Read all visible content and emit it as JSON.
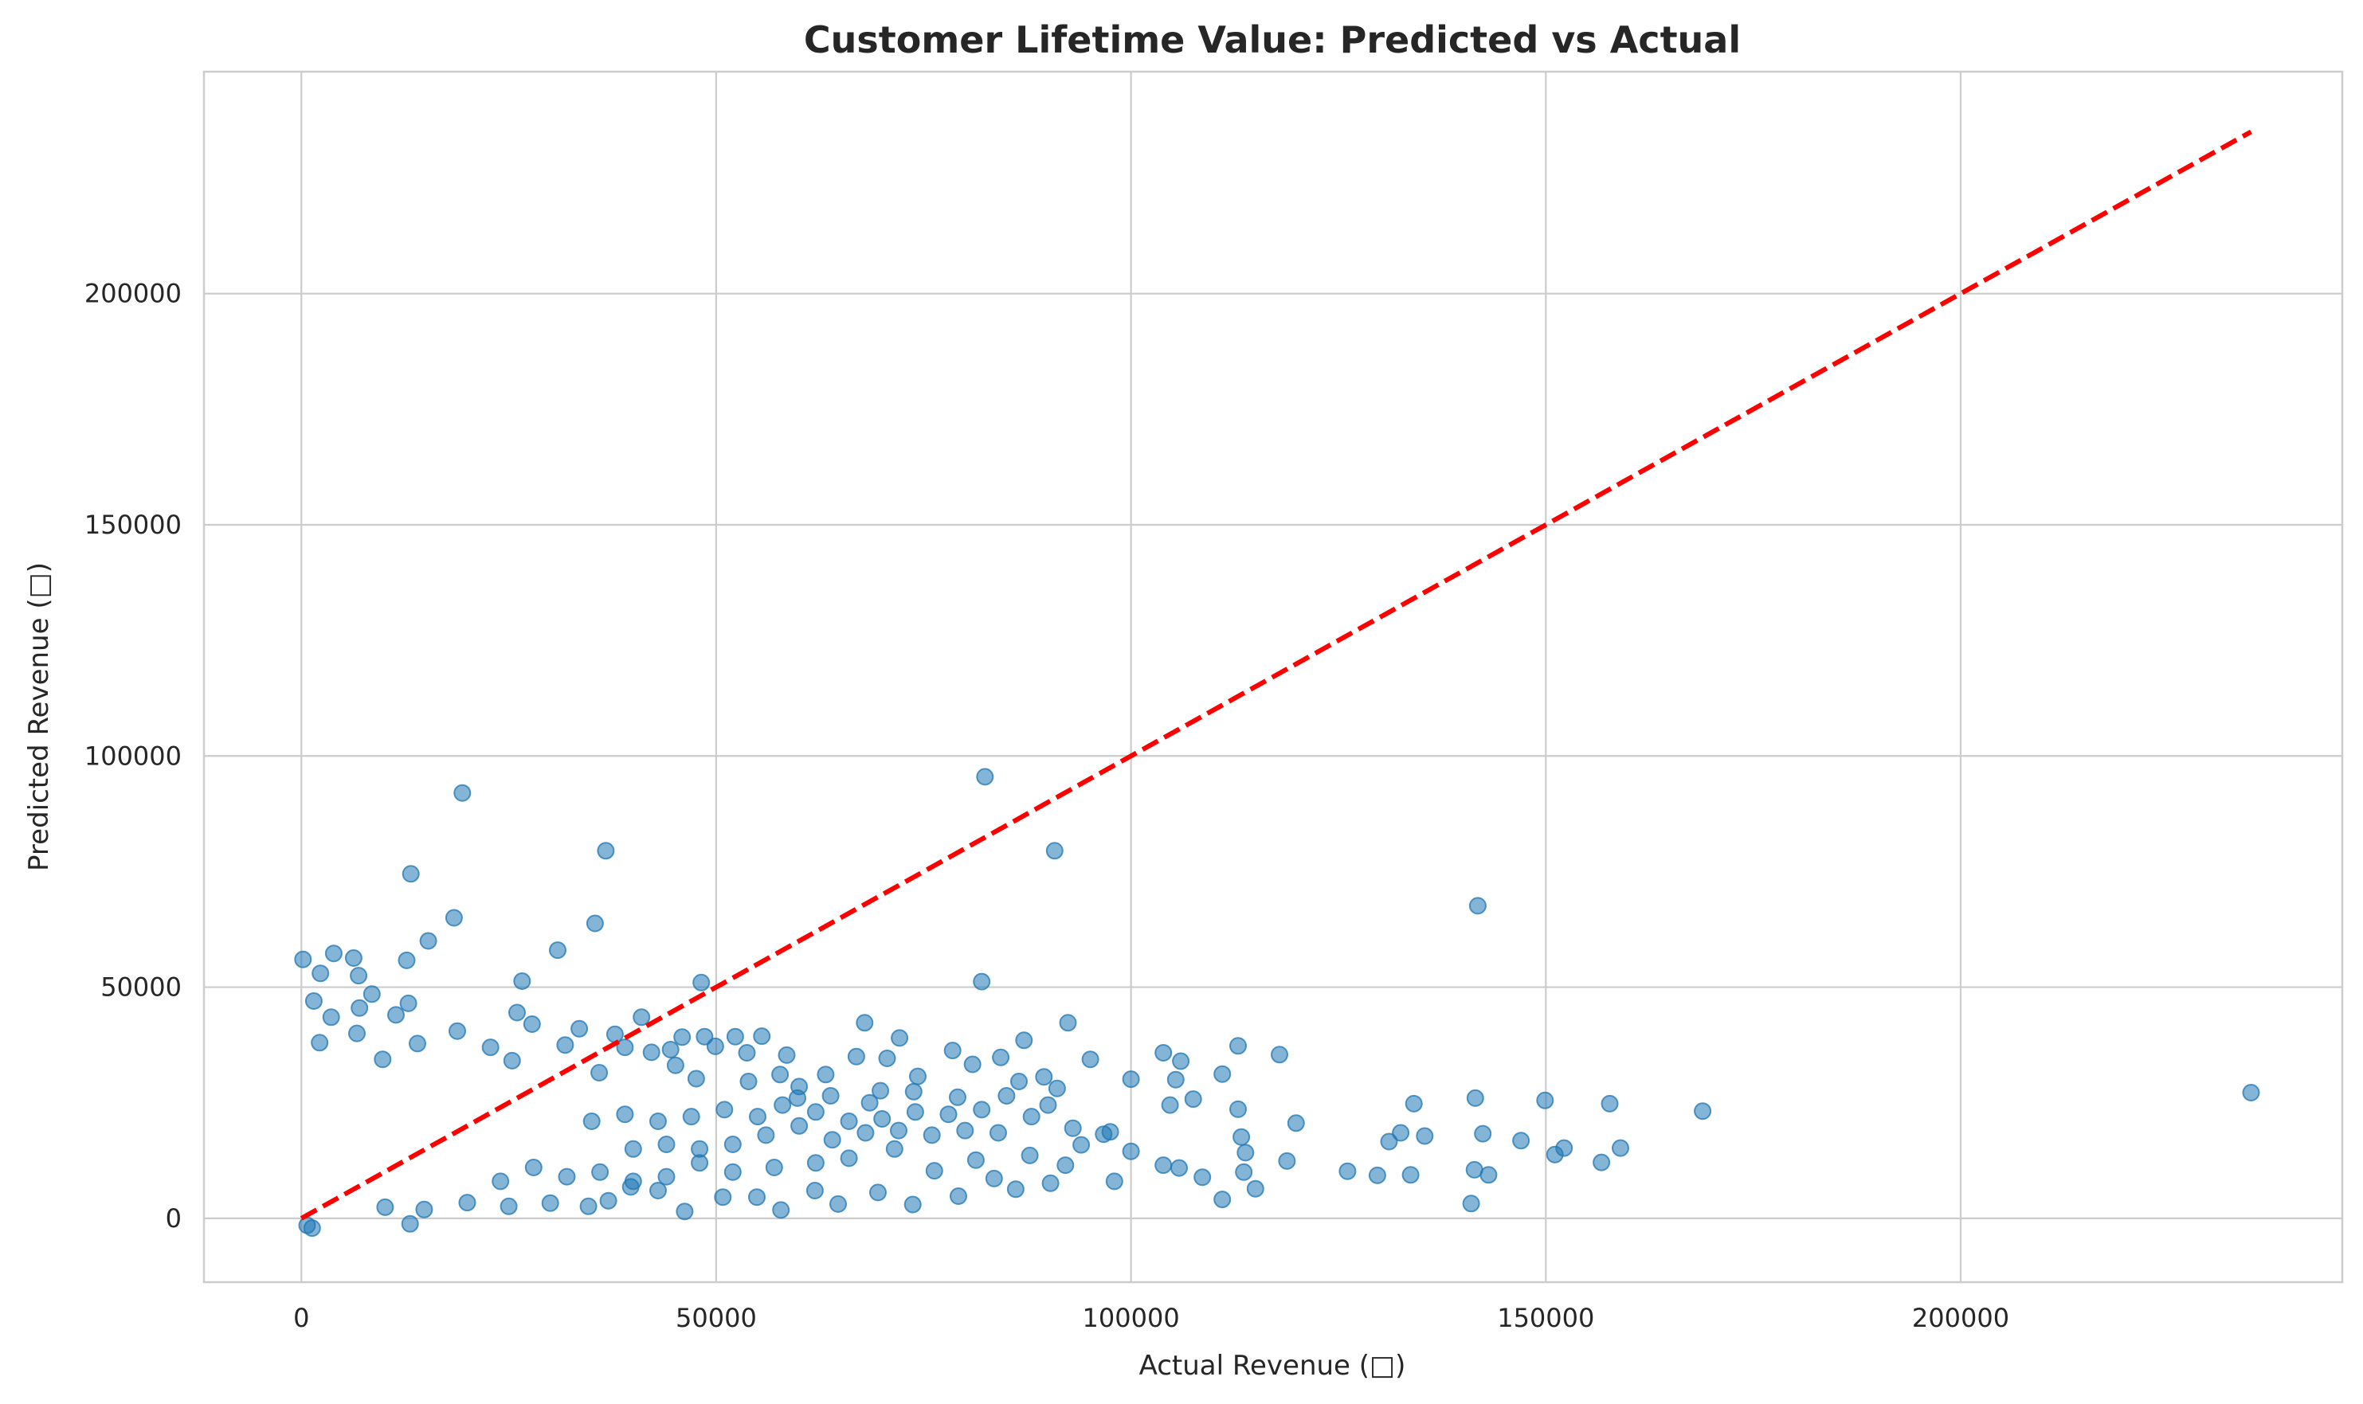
{
  "chart_data": {
    "type": "scatter",
    "title": "Customer Lifetime Value: Predicted vs Actual",
    "xlabel": "Actual Revenue (□)",
    "ylabel": "Predicted Revenue (□)",
    "xlim": [
      -11740,
      246000
    ],
    "ylim": [
      -13800,
      248000
    ],
    "xticks": [
      0,
      50000,
      100000,
      150000,
      200000
    ],
    "yticks": [
      0,
      50000,
      100000,
      150000,
      200000
    ],
    "grid": true,
    "colors": {
      "points": "#1f77b4",
      "reference_line": "#ff0000",
      "grid": "#cccccc"
    },
    "reference_line": {
      "x": [
        0,
        235000
      ],
      "y": [
        0,
        235000
      ],
      "style": "dashed"
    },
    "points": [
      [
        82400,
        95500
      ],
      [
        19400,
        92000
      ],
      [
        90800,
        79500
      ],
      [
        36700,
        79500
      ],
      [
        13200,
        74500
      ],
      [
        141800,
        67600
      ],
      [
        18400,
        65000
      ],
      [
        35400,
        63800
      ],
      [
        15300,
        60000
      ],
      [
        30900,
        58000
      ],
      [
        3900,
        57300
      ],
      [
        6300,
        56300
      ],
      [
        200,
        56000
      ],
      [
        12700,
        55800
      ],
      [
        2300,
        53000
      ],
      [
        6900,
        52500
      ],
      [
        26600,
        51300
      ],
      [
        82000,
        51200
      ],
      [
        48200,
        51000
      ],
      [
        8500,
        48500
      ],
      [
        12900,
        46500
      ],
      [
        1500,
        47000
      ],
      [
        7000,
        45500
      ],
      [
        26000,
        44500
      ],
      [
        3600,
        43500
      ],
      [
        41000,
        43500
      ],
      [
        11400,
        44000
      ],
      [
        67900,
        42300
      ],
      [
        92400,
        42300
      ],
      [
        27800,
        42000
      ],
      [
        33500,
        41000
      ],
      [
        18800,
        40500
      ],
      [
        6700,
        40000
      ],
      [
        37800,
        39800
      ],
      [
        45900,
        39200
      ],
      [
        48600,
        39300
      ],
      [
        52300,
        39300
      ],
      [
        55500,
        39400
      ],
      [
        72100,
        39000
      ],
      [
        87100,
        38500
      ],
      [
        2200,
        38000
      ],
      [
        14000,
        37800
      ],
      [
        31800,
        37500
      ],
      [
        39000,
        37000
      ],
      [
        44500,
        36500
      ],
      [
        78500,
        36300
      ],
      [
        112900,
        37300
      ],
      [
        22800,
        37000
      ],
      [
        49900,
        37200
      ],
      [
        53700,
        35800
      ],
      [
        42200,
        35900
      ],
      [
        58500,
        35300
      ],
      [
        66900,
        35000
      ],
      [
        84300,
        34800
      ],
      [
        95100,
        34400
      ],
      [
        103900,
        35800
      ],
      [
        106000,
        34000
      ],
      [
        117900,
        35400
      ],
      [
        9800,
        34400
      ],
      [
        25400,
        34100
      ],
      [
        57700,
        31100
      ],
      [
        70600,
        34600
      ],
      [
        80900,
        33300
      ],
      [
        111000,
        31200
      ],
      [
        45100,
        33100
      ],
      [
        35900,
        31500
      ],
      [
        63200,
        31100
      ],
      [
        74300,
        30700
      ],
      [
        89500,
        30600
      ],
      [
        100000,
        30100
      ],
      [
        105400,
        30000
      ],
      [
        47600,
        30200
      ],
      [
        53900,
        29600
      ],
      [
        60000,
        28500
      ],
      [
        86500,
        29600
      ],
      [
        91100,
        28100
      ],
      [
        69800,
        27600
      ],
      [
        73800,
        27400
      ],
      [
        107500,
        25800
      ],
      [
        79100,
        26200
      ],
      [
        63800,
        26500
      ],
      [
        134100,
        24800
      ],
      [
        141500,
        26000
      ],
      [
        149900,
        25500
      ],
      [
        157700,
        24800
      ],
      [
        59800,
        26000
      ],
      [
        68500,
        25000
      ],
      [
        104700,
        24500
      ],
      [
        112900,
        23600
      ],
      [
        168900,
        23200
      ],
      [
        235000,
        27200
      ],
      [
        119900,
        20600
      ],
      [
        131100,
        16600
      ],
      [
        132500,
        18500
      ],
      [
        135400,
        17800
      ],
      [
        142400,
        18300
      ],
      [
        147000,
        16800
      ],
      [
        152200,
        15200
      ],
      [
        159000,
        15200
      ],
      [
        151100,
        13800
      ],
      [
        156700,
        12100
      ],
      [
        126100,
        10200
      ],
      [
        129700,
        9300
      ],
      [
        133700,
        9400
      ],
      [
        141400,
        10500
      ],
      [
        143100,
        9400
      ],
      [
        141000,
        3200
      ],
      [
        111000,
        4100
      ],
      [
        115000,
        6400
      ],
      [
        113600,
        10000
      ],
      [
        118800,
        12400
      ],
      [
        113300,
        17600
      ],
      [
        113800,
        14200
      ],
      [
        105800,
        10900
      ],
      [
        108600,
        8900
      ],
      [
        103900,
        11500
      ],
      [
        98000,
        8000
      ],
      [
        96700,
        18200
      ],
      [
        92100,
        11500
      ],
      [
        90300,
        7600
      ],
      [
        86100,
        6300
      ],
      [
        83500,
        8600
      ],
      [
        79200,
        4800
      ],
      [
        73700,
        3000
      ],
      [
        69500,
        5600
      ],
      [
        64700,
        3100
      ],
      [
        61900,
        6000
      ],
      [
        57800,
        1800
      ],
      [
        54900,
        4600
      ],
      [
        50800,
        4600
      ],
      [
        46200,
        1500
      ],
      [
        43000,
        6000
      ],
      [
        39700,
        6800
      ],
      [
        37000,
        3800
      ],
      [
        34600,
        2600
      ],
      [
        30000,
        3300
      ],
      [
        25000,
        2600
      ],
      [
        20000,
        3400
      ],
      [
        14800,
        1900
      ],
      [
        10100,
        2400
      ],
      [
        13100,
        -1200
      ],
      [
        700,
        -1500
      ],
      [
        1300,
        -2100
      ],
      [
        100000,
        14500
      ],
      [
        94000,
        15900
      ],
      [
        87800,
        13600
      ],
      [
        81300,
        12600
      ],
      [
        76300,
        10300
      ],
      [
        71500,
        15000
      ],
      [
        66000,
        13000
      ],
      [
        62000,
        12000
      ],
      [
        57000,
        11000
      ],
      [
        52000,
        10000
      ],
      [
        48000,
        12000
      ],
      [
        44000,
        9000
      ],
      [
        40000,
        8000
      ],
      [
        36000,
        10000
      ],
      [
        32000,
        9000
      ],
      [
        28000,
        11000
      ],
      [
        24000,
        8000
      ],
      [
        97500,
        18700
      ],
      [
        93000,
        19500
      ],
      [
        88000,
        22000
      ],
      [
        84000,
        18500
      ],
      [
        80000,
        19000
      ],
      [
        76000,
        18000
      ],
      [
        72000,
        19000
      ],
      [
        68000,
        18500
      ],
      [
        64000,
        17000
      ],
      [
        60000,
        20000
      ],
      [
        56000,
        18000
      ],
      [
        52000,
        16000
      ],
      [
        48000,
        15000
      ],
      [
        44000,
        16000
      ],
      [
        40000,
        15000
      ],
      [
        90000,
        24500
      ],
      [
        85000,
        26500
      ],
      [
        82000,
        23500
      ],
      [
        78000,
        22500
      ],
      [
        74000,
        23000
      ],
      [
        70000,
        21500
      ],
      [
        66000,
        21000
      ],
      [
        62000,
        23000
      ],
      [
        58000,
        24500
      ],
      [
        55000,
        22000
      ],
      [
        51000,
        23500
      ],
      [
        47000,
        22000
      ],
      [
        43000,
        21000
      ],
      [
        39000,
        22500
      ],
      [
        35000,
        21000
      ]
    ]
  }
}
